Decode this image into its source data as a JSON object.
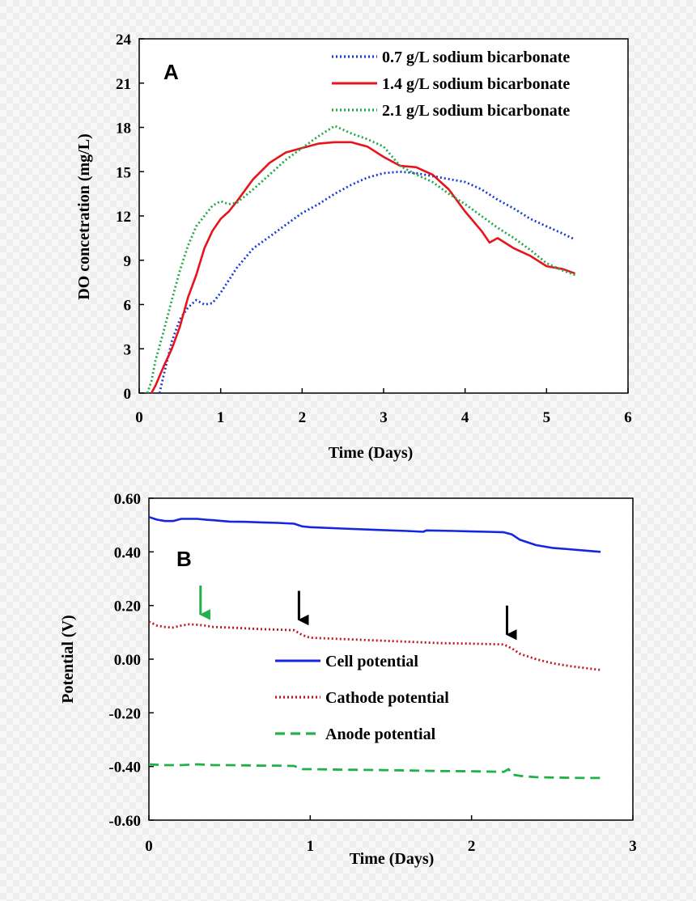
{
  "chart_data": [
    {
      "type": "line",
      "panel": "A",
      "xlabel": "Time (Days)",
      "ylabel": "DO concetration (mg/L)",
      "xlim": [
        0,
        6
      ],
      "ylim": [
        0,
        24
      ],
      "xticks": [
        0,
        1,
        2,
        3,
        4,
        5,
        6
      ],
      "yticks": [
        0,
        3,
        6,
        9,
        12,
        15,
        18,
        21,
        24
      ],
      "legend_position": "top-right",
      "series": [
        {
          "name": "0.7 g/L sodium bicarbonate",
          "color": "#1a3cd6",
          "style": "dotted",
          "x": [
            0.25,
            0.3,
            0.4,
            0.5,
            0.6,
            0.7,
            0.8,
            0.9,
            1.0,
            1.2,
            1.4,
            1.6,
            1.8,
            2.0,
            2.2,
            2.4,
            2.6,
            2.8,
            3.0,
            3.2,
            3.4,
            3.6,
            3.8,
            4.0,
            4.2,
            4.4,
            4.6,
            4.8,
            5.0,
            5.2,
            5.35
          ],
          "y": [
            0,
            1.2,
            3.5,
            5.0,
            5.8,
            6.3,
            6.0,
            6.1,
            6.8,
            8.5,
            9.8,
            10.6,
            11.4,
            12.2,
            12.8,
            13.5,
            14.1,
            14.6,
            14.9,
            15.0,
            14.9,
            14.7,
            14.5,
            14.3,
            13.8,
            13.1,
            12.5,
            11.8,
            11.3,
            10.8,
            10.4
          ]
        },
        {
          "name": "1.4 g/L sodium bicarbonate",
          "color": "#e8141b",
          "style": "solid",
          "x": [
            0.15,
            0.2,
            0.3,
            0.4,
            0.5,
            0.6,
            0.7,
            0.8,
            0.9,
            1.0,
            1.1,
            1.2,
            1.4,
            1.6,
            1.8,
            2.0,
            2.2,
            2.4,
            2.6,
            2.8,
            3.0,
            3.2,
            3.4,
            3.6,
            3.8,
            4.0,
            4.2,
            4.3,
            4.4,
            4.6,
            4.8,
            5.0,
            5.2,
            5.35
          ],
          "y": [
            0,
            0.5,
            1.8,
            3.0,
            4.5,
            6.5,
            8.0,
            9.8,
            11.0,
            11.8,
            12.3,
            13.0,
            14.5,
            15.6,
            16.3,
            16.6,
            16.9,
            17.0,
            17.0,
            16.7,
            16.0,
            15.4,
            15.3,
            14.8,
            13.8,
            12.3,
            11.0,
            10.2,
            10.5,
            9.8,
            9.3,
            8.6,
            8.4,
            8.1
          ]
        },
        {
          "name": "2.1 g/L sodium bicarbonate",
          "color": "#22a845",
          "style": "dotted",
          "x": [
            0.1,
            0.15,
            0.2,
            0.3,
            0.4,
            0.5,
            0.6,
            0.7,
            0.8,
            0.9,
            1.0,
            1.1,
            1.2,
            1.4,
            1.6,
            1.8,
            2.0,
            2.2,
            2.4,
            2.6,
            2.8,
            3.0,
            3.2,
            3.4,
            3.6,
            3.8,
            4.0,
            4.2,
            4.4,
            4.6,
            4.8,
            5.0,
            5.2,
            5.35
          ],
          "y": [
            0,
            0.8,
            2.2,
            4.2,
            6.3,
            8.3,
            10.0,
            11.3,
            12.0,
            12.7,
            13.0,
            12.8,
            12.9,
            13.8,
            14.8,
            15.8,
            16.6,
            17.4,
            18.1,
            17.6,
            17.2,
            16.7,
            15.4,
            14.8,
            14.3,
            13.5,
            12.8,
            12.0,
            11.2,
            10.5,
            9.7,
            8.8,
            8.3,
            8.0
          ]
        }
      ],
      "annotations": []
    },
    {
      "type": "line",
      "panel": "B",
      "xlabel": "Time (Days)",
      "ylabel": "Potential (V)",
      "xlim": [
        0,
        3
      ],
      "ylim": [
        -0.6,
        0.6
      ],
      "xticks": [
        0,
        1,
        2,
        3
      ],
      "yticks": [
        0.6,
        0.4,
        0.2,
        0.0,
        -0.2,
        -0.4,
        -0.6
      ],
      "ytick_labels": [
        "0.60",
        "0.40",
        "0.20",
        "0.00",
        "-0.20",
        "-0.40",
        "-0.60"
      ],
      "legend_position": "center",
      "series": [
        {
          "name": "Cell potential",
          "color": "#1426e0",
          "style": "solid",
          "x": [
            0.0,
            0.05,
            0.1,
            0.15,
            0.2,
            0.25,
            0.3,
            0.35,
            0.4,
            0.5,
            0.6,
            0.7,
            0.8,
            0.9,
            0.95,
            1.0,
            1.2,
            1.4,
            1.6,
            1.7,
            1.72,
            1.9,
            2.0,
            2.1,
            2.2,
            2.25,
            2.3,
            2.4,
            2.5,
            2.6,
            2.7,
            2.8
          ],
          "y": [
            0.53,
            0.52,
            0.515,
            0.515,
            0.523,
            0.523,
            0.523,
            0.52,
            0.518,
            0.513,
            0.512,
            0.51,
            0.508,
            0.505,
            0.495,
            0.492,
            0.487,
            0.482,
            0.478,
            0.475,
            0.48,
            0.478,
            0.476,
            0.475,
            0.473,
            0.465,
            0.445,
            0.425,
            0.415,
            0.41,
            0.405,
            0.4
          ]
        },
        {
          "name": "Cathode potential",
          "color": "#c0161c",
          "style": "dotted",
          "x": [
            0.0,
            0.05,
            0.1,
            0.15,
            0.2,
            0.25,
            0.3,
            0.35,
            0.4,
            0.5,
            0.6,
            0.7,
            0.8,
            0.9,
            0.95,
            1.0,
            1.2,
            1.4,
            1.6,
            1.8,
            2.0,
            2.2,
            2.25,
            2.3,
            2.4,
            2.5,
            2.6,
            2.7,
            2.8
          ],
          "y": [
            0.14,
            0.125,
            0.12,
            0.118,
            0.125,
            0.13,
            0.128,
            0.125,
            0.12,
            0.118,
            0.115,
            0.112,
            0.11,
            0.108,
            0.09,
            0.08,
            0.075,
            0.07,
            0.065,
            0.06,
            0.058,
            0.055,
            0.04,
            0.02,
            0.0,
            -0.015,
            -0.025,
            -0.033,
            -0.04
          ]
        },
        {
          "name": "Anode potential",
          "color": "#22b04b",
          "style": "dashed",
          "x": [
            0.0,
            0.1,
            0.2,
            0.3,
            0.4,
            0.5,
            0.6,
            0.7,
            0.8,
            0.9,
            0.95,
            1.0,
            1.2,
            1.4,
            1.6,
            1.8,
            2.0,
            2.2,
            2.23,
            2.25,
            2.3,
            2.4,
            2.5,
            2.6,
            2.7,
            2.8
          ],
          "y": [
            -0.392,
            -0.395,
            -0.395,
            -0.392,
            -0.395,
            -0.395,
            -0.396,
            -0.397,
            -0.397,
            -0.398,
            -0.41,
            -0.41,
            -0.412,
            -0.413,
            -0.415,
            -0.417,
            -0.418,
            -0.42,
            -0.41,
            -0.43,
            -0.435,
            -0.44,
            -0.441,
            -0.442,
            -0.443,
            -0.443
          ]
        }
      ],
      "arrows": [
        {
          "x": 0.32,
          "y": 0.13,
          "color": "#22b04b"
        },
        {
          "x": 0.93,
          "y": 0.11,
          "color": "#000000"
        },
        {
          "x": 2.22,
          "y": 0.055,
          "color": "#000000"
        }
      ]
    }
  ]
}
